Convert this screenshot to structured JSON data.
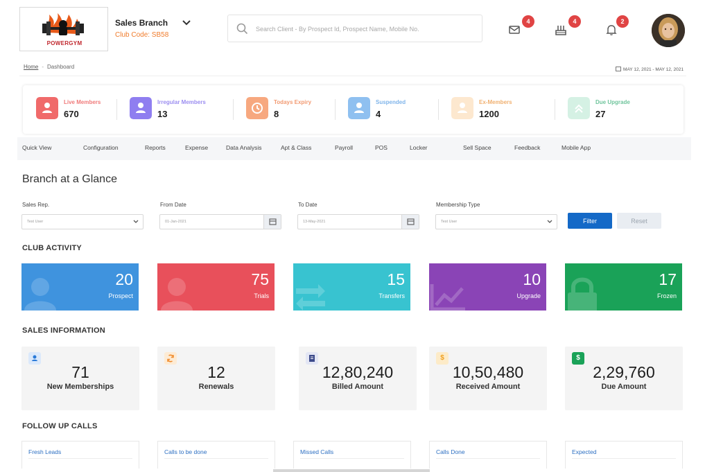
{
  "header": {
    "logo_text": "POWERGYM",
    "branch_name": "Sales Branch",
    "club_code": "Club Code: SB58",
    "search_placeholder": "Search Client - By Prospect Id, Prospect Name, Mobile No.",
    "badges": {
      "mail": "4",
      "store": "4",
      "notifications": "2"
    }
  },
  "breadcrumb": {
    "home": "Home",
    "separator": "-",
    "current": "Dashboard",
    "date_range": "MAY 12, 2021 - MAY 12, 2021"
  },
  "stats": [
    {
      "label": "Live Members",
      "value": "670",
      "color": "#f06a6a",
      "label_color": "#f07a7a"
    },
    {
      "label": "Irregular Members",
      "value": "13",
      "color": "#8f7ef0",
      "label_color": "#9b8df0"
    },
    {
      "label": "Todays Expiry",
      "value": "8",
      "color": "#f7a87f",
      "label_color": "#f29a72"
    },
    {
      "label": "Suspended",
      "value": "4",
      "color": "#8fc0f0",
      "label_color": "#7fb4ea"
    },
    {
      "label": "Ex-Members",
      "value": "1200",
      "color": "#fde8cf",
      "label_color": "#f0b070"
    },
    {
      "label": "Due Upgrade",
      "value": "27",
      "color": "#d5f1e4",
      "label_color": "#6fc49c"
    }
  ],
  "nav": [
    "Quick View",
    "Configuration",
    "Reports",
    "Expense",
    "Data Analysis",
    "Apt & Class",
    "Payroll",
    "POS",
    "Locker",
    "Sell Space",
    "Feedback",
    "Mobile App"
  ],
  "glance": {
    "title": "Branch at a Glance",
    "filters": {
      "sales_rep_label": "Sales Rep.",
      "sales_rep_value": "Test User",
      "from_label": "From Date",
      "from_value": "01-Jan-2021",
      "to_label": "To Date",
      "to_value": "13-May-2021",
      "membership_label": "Membership Type",
      "membership_value": "Test User"
    },
    "filter_button": "Filter",
    "reset_button": "Reset"
  },
  "club_activity": {
    "title": "CLUB ACTIVITY",
    "cards": [
      {
        "value": "20",
        "label": "Prospect",
        "color": "#3f93de"
      },
      {
        "value": "75",
        "label": "Trials",
        "color": "#e8505b"
      },
      {
        "value": "15",
        "label": "Transfers",
        "color": "#38c3d0"
      },
      {
        "value": "10",
        "label": "Upgrade",
        "color": "#8a44b6"
      },
      {
        "value": "17",
        "label": "Frozen",
        "color": "#1aa258"
      }
    ]
  },
  "sales": {
    "title": "SALES INFORMATION",
    "cards": [
      {
        "value": "71",
        "label": "New Memberships",
        "badge_icon": "person-icon",
        "badge_color": "#dbe9fb",
        "badge_text_color": "#2a7ad8"
      },
      {
        "value": "12",
        "label": "Renewals",
        "badge_icon": "refresh-icon",
        "badge_color": "#fdebd5",
        "badge_text_color": "#f08a2a"
      },
      {
        "value": "12,80,240",
        "label": "Billed Amount",
        "badge_icon": "bill-icon",
        "badge_color": "#e3e6f4",
        "badge_text_color": "#3c4a8a"
      },
      {
        "value": "10,50,480",
        "label": "Received Amount",
        "badge_icon": "dollar-icon",
        "badge_color": "#fdebc8",
        "badge_text_color": "#f0a020",
        "badge_glyph": "$"
      },
      {
        "value": "2,29,760",
        "label": "Due Amount",
        "badge_icon": "dollar-icon",
        "badge_color": "#d4f0e0",
        "badge_text_color": "#1aa258",
        "badge_glyph": "$"
      }
    ]
  },
  "follow_up": {
    "title": "FOLLOW UP CALLS",
    "cards": [
      "Fresh Leads",
      "Calls to be done",
      "Missed Calls",
      "Calls Done",
      "Expected"
    ]
  }
}
